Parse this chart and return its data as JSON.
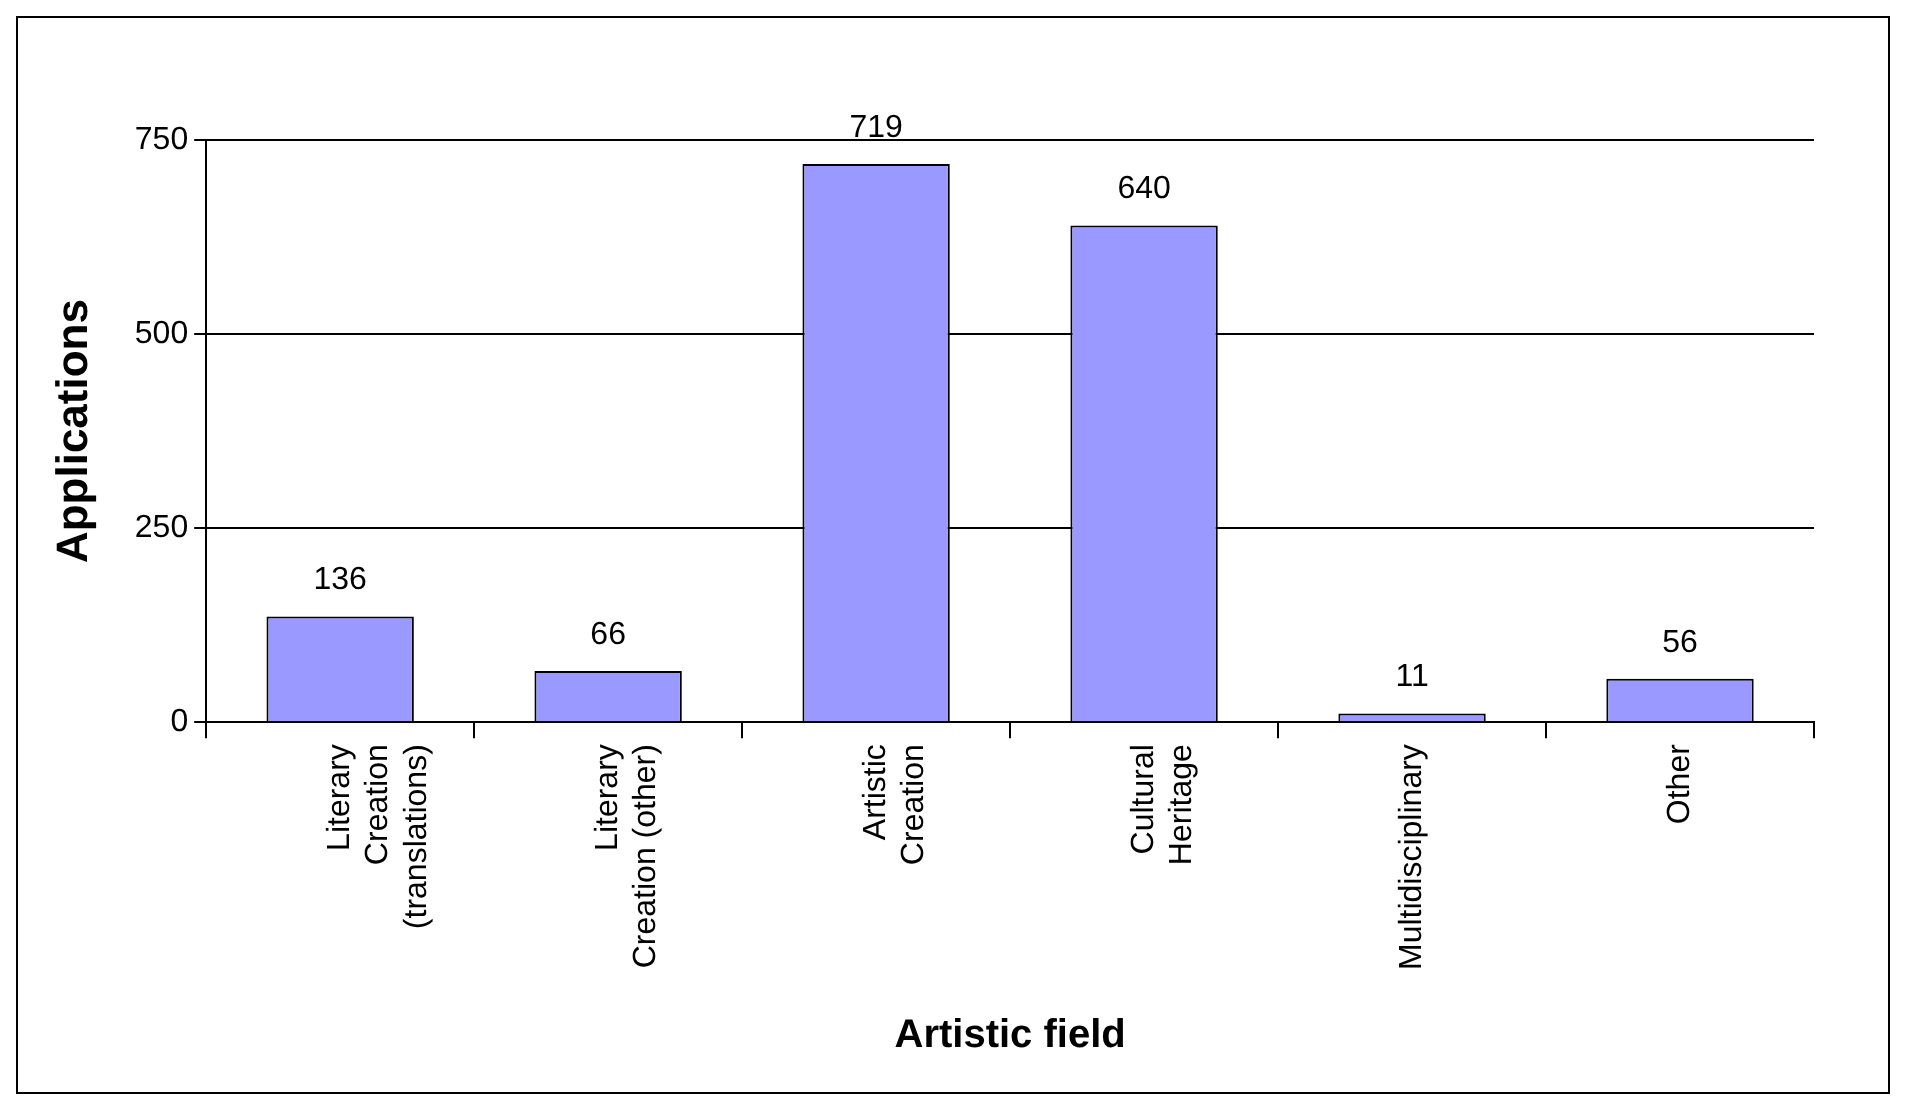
{
  "chart_data": {
    "type": "bar",
    "xlabel": "Artistic field",
    "ylabel": "Applications",
    "categories": [
      "Literary Creation (translations)",
      "Literary Creation (other)",
      "Artistic Creation",
      "Cultural Heritage",
      "Multidisciplinary",
      "Other"
    ],
    "values": [
      136,
      66,
      719,
      640,
      11,
      56
    ],
    "color": "#9999ff",
    "ylim": [
      0,
      750
    ],
    "yticks": [
      0,
      250,
      500,
      750
    ],
    "grid": "y",
    "data_labels": true,
    "legend": false
  }
}
